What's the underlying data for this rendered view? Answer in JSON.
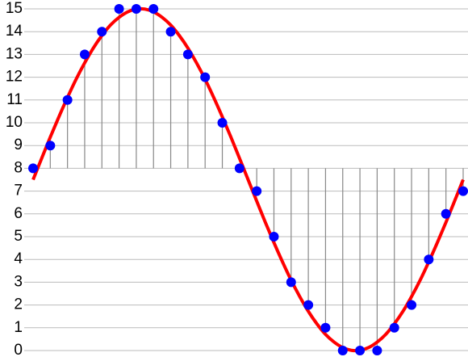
{
  "chart_data": {
    "type": "stem",
    "ylim": [
      0,
      15.4
    ],
    "yticks": [
      0,
      1,
      2,
      3,
      4,
      5,
      6,
      7,
      8,
      9,
      10,
      11,
      12,
      13,
      14,
      15
    ],
    "xlim": [
      0,
      25
    ],
    "grid": true,
    "stem_base": 8,
    "stem_color": "#888888",
    "curve": {
      "color": "#ff0000",
      "x": [
        0,
        0.5,
        1,
        1.5,
        2,
        2.5,
        3,
        3.5,
        4,
        4.5,
        5,
        5.5,
        6,
        6.5,
        7,
        7.5,
        8,
        8.5,
        9,
        9.5,
        10,
        10.5,
        11,
        11.5,
        12,
        12.5,
        13,
        13.5,
        14,
        14.5,
        15,
        15.5,
        16,
        16.5,
        17,
        17.5,
        18,
        18.5,
        19,
        19.5,
        20,
        20.5,
        21,
        21.5,
        22,
        22.5,
        23,
        23.5,
        24,
        24.5,
        25
      ],
      "values": [
        7.5,
        8.44,
        9.37,
        10.26,
        11.11,
        11.91,
        12.63,
        13.28,
        13.83,
        14.29,
        14.63,
        14.87,
        14.99,
        14.99,
        14.87,
        14.63,
        14.29,
        13.83,
        13.28,
        12.63,
        11.91,
        11.11,
        10.26,
        9.37,
        8.44,
        7.5,
        6.56,
        5.63,
        4.74,
        3.89,
        3.09,
        2.37,
        1.72,
        1.17,
        0.71,
        0.37,
        0.13,
        0.01,
        0.01,
        0.13,
        0.37,
        0.71,
        1.17,
        1.72,
        2.37,
        3.09,
        3.89,
        4.74,
        5.63,
        6.56,
        7.5
      ]
    },
    "samples": {
      "color": "#0000ff",
      "x": [
        0,
        1,
        2,
        3,
        4,
        5,
        6,
        7,
        8,
        9,
        10,
        11,
        12,
        13,
        14,
        15,
        16,
        17,
        18,
        19,
        20,
        21,
        22,
        23,
        24,
        25
      ],
      "values": [
        8,
        9,
        11,
        13,
        14,
        15,
        15,
        15,
        14,
        13,
        12,
        10,
        8,
        7,
        5,
        3,
        2,
        1,
        0,
        0,
        0,
        1,
        2,
        4,
        6,
        7
      ]
    }
  }
}
